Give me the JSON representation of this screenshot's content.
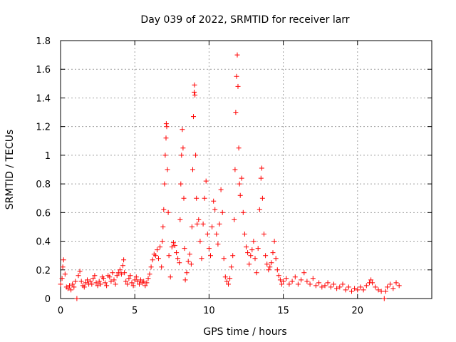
{
  "chart_data": {
    "type": "scatter",
    "title": "Day 039 of 2022, SRMTID for receiver larr",
    "xlabel": "GPS time / hours",
    "ylabel": "SRMTID / TECUs",
    "xlim": [
      0,
      25
    ],
    "ylim": [
      0,
      1.8
    ],
    "grid": true,
    "marker": "plus",
    "color": "#ff0000",
    "x_ticks": [
      0,
      5,
      10,
      15,
      20
    ],
    "x_tick_labels": [
      "0",
      "5",
      "10",
      "15",
      "20"
    ],
    "y_ticks": [
      0,
      0.2,
      0.4,
      0.6,
      0.8,
      1.0,
      1.2,
      1.4,
      1.6,
      1.8
    ],
    "y_tick_labels": [
      "0",
      "0.2",
      "0.4",
      "0.6",
      "0.8",
      "1",
      "1.2",
      "1.4",
      "1.6",
      "1.8"
    ],
    "series": [
      {
        "name": "SRMTID",
        "points": [
          [
            0.0,
            0.1
          ],
          [
            0.1,
            0.14
          ],
          [
            0.15,
            0.22
          ],
          [
            0.2,
            0.27
          ],
          [
            0.3,
            0.17
          ],
          [
            0.4,
            0.08
          ],
          [
            0.5,
            0.07
          ],
          [
            0.6,
            0.09
          ],
          [
            0.7,
            0.06
          ],
          [
            0.8,
            0.1
          ],
          [
            0.9,
            0.08
          ],
          [
            1.0,
            0.12
          ],
          [
            1.1,
            0.0
          ],
          [
            1.2,
            0.16
          ],
          [
            1.3,
            0.19
          ],
          [
            1.4,
            0.12
          ],
          [
            1.5,
            0.09
          ],
          [
            1.6,
            0.08
          ],
          [
            1.7,
            0.11
          ],
          [
            1.8,
            0.13
          ],
          [
            1.9,
            0.1
          ],
          [
            2.0,
            0.12
          ],
          [
            2.1,
            0.1
          ],
          [
            2.2,
            0.14
          ],
          [
            2.3,
            0.16
          ],
          [
            2.4,
            0.11
          ],
          [
            2.5,
            0.09
          ],
          [
            2.6,
            0.12
          ],
          [
            2.7,
            0.1
          ],
          [
            2.8,
            0.15
          ],
          [
            2.9,
            0.14
          ],
          [
            3.0,
            0.11
          ],
          [
            3.1,
            0.09
          ],
          [
            3.2,
            0.16
          ],
          [
            3.3,
            0.15
          ],
          [
            3.4,
            0.12
          ],
          [
            3.5,
            0.18
          ],
          [
            3.6,
            0.13
          ],
          [
            3.7,
            0.1
          ],
          [
            3.8,
            0.16
          ],
          [
            3.9,
            0.18
          ],
          [
            4.0,
            0.2
          ],
          [
            4.1,
            0.17
          ],
          [
            4.2,
            0.23
          ],
          [
            4.25,
            0.27
          ],
          [
            4.3,
            0.18
          ],
          [
            4.4,
            0.12
          ],
          [
            4.5,
            0.1
          ],
          [
            4.6,
            0.14
          ],
          [
            4.7,
            0.16
          ],
          [
            4.8,
            0.11
          ],
          [
            4.9,
            0.09
          ],
          [
            5.0,
            0.13
          ],
          [
            5.1,
            0.15
          ],
          [
            5.2,
            0.12
          ],
          [
            5.3,
            0.1
          ],
          [
            5.4,
            0.13
          ],
          [
            5.5,
            0.11
          ],
          [
            5.6,
            0.12
          ],
          [
            5.7,
            0.09
          ],
          [
            5.8,
            0.11
          ],
          [
            5.9,
            0.14
          ],
          [
            6.0,
            0.17
          ],
          [
            6.1,
            0.22
          ],
          [
            6.2,
            0.27
          ],
          [
            6.3,
            0.31
          ],
          [
            6.4,
            0.3
          ],
          [
            6.5,
            0.34
          ],
          [
            6.6,
            0.28
          ],
          [
            6.7,
            0.36
          ],
          [
            6.8,
            0.22
          ],
          [
            6.85,
            0.4
          ],
          [
            6.9,
            0.5
          ],
          [
            6.95,
            0.62
          ],
          [
            7.0,
            0.8
          ],
          [
            7.05,
            1.0
          ],
          [
            7.1,
            1.12
          ],
          [
            7.12,
            1.22
          ],
          [
            7.15,
            1.2
          ],
          [
            7.2,
            0.9
          ],
          [
            7.25,
            0.6
          ],
          [
            7.3,
            0.3
          ],
          [
            7.4,
            0.15
          ],
          [
            7.5,
            0.36
          ],
          [
            7.6,
            0.39
          ],
          [
            7.7,
            0.37
          ],
          [
            7.8,
            0.32
          ],
          [
            7.9,
            0.28
          ],
          [
            8.0,
            0.25
          ],
          [
            8.05,
            0.55
          ],
          [
            8.1,
            0.8
          ],
          [
            8.15,
            1.0
          ],
          [
            8.2,
            1.18
          ],
          [
            8.25,
            1.05
          ],
          [
            8.3,
            0.7
          ],
          [
            8.35,
            0.35
          ],
          [
            8.4,
            0.13
          ],
          [
            8.5,
            0.18
          ],
          [
            8.6,
            0.26
          ],
          [
            8.7,
            0.31
          ],
          [
            8.8,
            0.24
          ],
          [
            8.85,
            0.5
          ],
          [
            8.9,
            0.9
          ],
          [
            8.95,
            1.27
          ],
          [
            9.0,
            1.44
          ],
          [
            9.02,
            1.49
          ],
          [
            9.05,
            1.42
          ],
          [
            9.1,
            1.0
          ],
          [
            9.15,
            0.7
          ],
          [
            9.2,
            0.52
          ],
          [
            9.3,
            0.55
          ],
          [
            9.4,
            0.4
          ],
          [
            9.5,
            0.28
          ],
          [
            9.6,
            0.52
          ],
          [
            9.7,
            0.7
          ],
          [
            9.8,
            0.82
          ],
          [
            9.9,
            0.45
          ],
          [
            10.0,
            0.35
          ],
          [
            10.1,
            0.3
          ],
          [
            10.2,
            0.5
          ],
          [
            10.3,
            0.68
          ],
          [
            10.4,
            0.62
          ],
          [
            10.5,
            0.45
          ],
          [
            10.6,
            0.38
          ],
          [
            10.7,
            0.52
          ],
          [
            10.8,
            0.76
          ],
          [
            10.9,
            0.6
          ],
          [
            11.0,
            0.28
          ],
          [
            11.1,
            0.15
          ],
          [
            11.2,
            0.12
          ],
          [
            11.3,
            0.1
          ],
          [
            11.4,
            0.14
          ],
          [
            11.5,
            0.22
          ],
          [
            11.6,
            0.3
          ],
          [
            11.7,
            0.55
          ],
          [
            11.75,
            0.9
          ],
          [
            11.8,
            1.3
          ],
          [
            11.85,
            1.55
          ],
          [
            11.9,
            1.7
          ],
          [
            11.95,
            1.48
          ],
          [
            12.0,
            1.05
          ],
          [
            12.05,
            0.8
          ],
          [
            12.1,
            0.72
          ],
          [
            12.2,
            0.84
          ],
          [
            12.3,
            0.6
          ],
          [
            12.4,
            0.45
          ],
          [
            12.5,
            0.36
          ],
          [
            12.6,
            0.32
          ],
          [
            12.7,
            0.24
          ],
          [
            12.8,
            0.3
          ],
          [
            12.9,
            0.34
          ],
          [
            13.0,
            0.4
          ],
          [
            13.1,
            0.28
          ],
          [
            13.2,
            0.18
          ],
          [
            13.3,
            0.35
          ],
          [
            13.4,
            0.62
          ],
          [
            13.5,
            0.84
          ],
          [
            13.55,
            0.91
          ],
          [
            13.6,
            0.7
          ],
          [
            13.7,
            0.45
          ],
          [
            13.8,
            0.3
          ],
          [
            13.9,
            0.24
          ],
          [
            14.0,
            0.2
          ],
          [
            14.1,
            0.22
          ],
          [
            14.2,
            0.25
          ],
          [
            14.3,
            0.32
          ],
          [
            14.4,
            0.4
          ],
          [
            14.5,
            0.28
          ],
          [
            14.6,
            0.2
          ],
          [
            14.7,
            0.16
          ],
          [
            14.8,
            0.13
          ],
          [
            14.9,
            0.1
          ],
          [
            15.0,
            0.12
          ],
          [
            15.2,
            0.14
          ],
          [
            15.4,
            0.1
          ],
          [
            15.6,
            0.12
          ],
          [
            15.8,
            0.15
          ],
          [
            16.0,
            0.1
          ],
          [
            16.2,
            0.13
          ],
          [
            16.4,
            0.18
          ],
          [
            16.6,
            0.12
          ],
          [
            16.8,
            0.1
          ],
          [
            17.0,
            0.14
          ],
          [
            17.2,
            0.09
          ],
          [
            17.4,
            0.11
          ],
          [
            17.6,
            0.08
          ],
          [
            17.8,
            0.09
          ],
          [
            18.0,
            0.11
          ],
          [
            18.2,
            0.08
          ],
          [
            18.4,
            0.1
          ],
          [
            18.6,
            0.07
          ],
          [
            18.8,
            0.08
          ],
          [
            19.0,
            0.1
          ],
          [
            19.2,
            0.06
          ],
          [
            19.4,
            0.08
          ],
          [
            19.6,
            0.05
          ],
          [
            19.8,
            0.07
          ],
          [
            20.0,
            0.06
          ],
          [
            20.2,
            0.08
          ],
          [
            20.4,
            0.06
          ],
          [
            20.6,
            0.09
          ],
          [
            20.8,
            0.11
          ],
          [
            20.9,
            0.13
          ],
          [
            21.0,
            0.11
          ],
          [
            21.2,
            0.08
          ],
          [
            21.4,
            0.06
          ],
          [
            21.6,
            0.05
          ],
          [
            21.8,
            0.0
          ],
          [
            21.9,
            0.05
          ],
          [
            22.0,
            0.08
          ],
          [
            22.2,
            0.1
          ],
          [
            22.4,
            0.07
          ],
          [
            22.6,
            0.11
          ],
          [
            22.8,
            0.09
          ]
        ]
      }
    ]
  }
}
